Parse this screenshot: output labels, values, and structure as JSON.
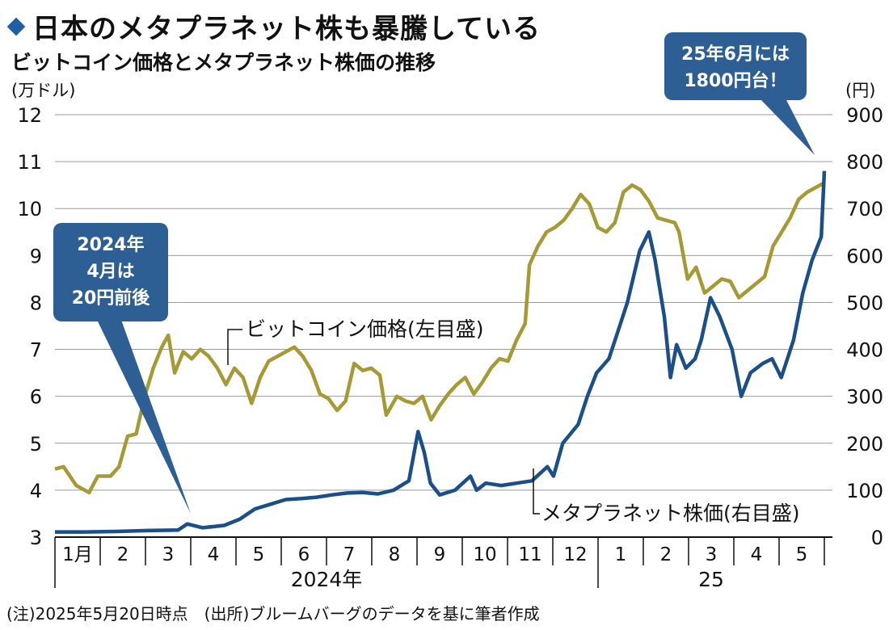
{
  "header": {
    "title": "日本のメタプラネット株も暴騰している",
    "subtitle": "ビットコイン価格とメタプラネット株価の推移",
    "unit_left": "(万ドル)",
    "unit_right": "(円)"
  },
  "footnote": "(注)2025年5月20日時点　(出所)ブルームバーグのデータを基に筆者作成",
  "chart_data": {
    "type": "line",
    "left_axis": {
      "unit": "万ドル",
      "range": [
        3,
        12
      ],
      "ticks": [
        3,
        4,
        5,
        6,
        7,
        8,
        9,
        10,
        11,
        12
      ]
    },
    "right_axis": {
      "unit": "円",
      "range": [
        0,
        900
      ],
      "ticks": [
        0,
        100,
        200,
        300,
        400,
        500,
        600,
        700,
        800,
        900
      ]
    },
    "x_axis": {
      "months": [
        "1月",
        "2",
        "3",
        "4",
        "5",
        "6",
        "7",
        "8",
        "9",
        "10",
        "11",
        "12",
        "1",
        "2",
        "3",
        "4",
        "5"
      ],
      "years": [
        "2024年",
        "25"
      ]
    },
    "grid": true,
    "series": [
      {
        "name": "ビットコイン価格(左目盛)",
        "axis": "left",
        "color": "#a69a35",
        "points": [
          [
            0.0,
            4.45
          ],
          [
            0.2,
            4.5
          ],
          [
            0.5,
            4.1
          ],
          [
            0.8,
            3.95
          ],
          [
            1.0,
            4.3
          ],
          [
            1.3,
            4.3
          ],
          [
            1.5,
            4.5
          ],
          [
            1.7,
            5.15
          ],
          [
            1.9,
            5.2
          ],
          [
            2.1,
            6.0
          ],
          [
            2.3,
            6.6
          ],
          [
            2.5,
            7.05
          ],
          [
            2.65,
            7.3
          ],
          [
            2.8,
            6.5
          ],
          [
            3.0,
            6.95
          ],
          [
            3.2,
            6.8
          ],
          [
            3.4,
            7.0
          ],
          [
            3.6,
            6.85
          ],
          [
            3.8,
            6.6
          ],
          [
            4.0,
            6.25
          ],
          [
            4.2,
            6.6
          ],
          [
            4.4,
            6.4
          ],
          [
            4.6,
            5.85
          ],
          [
            4.8,
            6.4
          ],
          [
            5.0,
            6.75
          ],
          [
            5.2,
            6.85
          ],
          [
            5.4,
            6.95
          ],
          [
            5.6,
            7.05
          ],
          [
            5.8,
            6.85
          ],
          [
            6.0,
            6.55
          ],
          [
            6.2,
            6.05
          ],
          [
            6.4,
            5.95
          ],
          [
            6.6,
            5.7
          ],
          [
            6.8,
            5.9
          ],
          [
            7.0,
            6.7
          ],
          [
            7.2,
            6.55
          ],
          [
            7.4,
            6.6
          ],
          [
            7.6,
            6.45
          ],
          [
            7.75,
            5.6
          ],
          [
            8.0,
            6.0
          ],
          [
            8.2,
            5.9
          ],
          [
            8.4,
            5.85
          ],
          [
            8.6,
            6.0
          ],
          [
            8.8,
            5.5
          ],
          [
            9.0,
            5.8
          ],
          [
            9.2,
            6.05
          ],
          [
            9.4,
            6.25
          ],
          [
            9.6,
            6.4
          ],
          [
            9.8,
            6.05
          ],
          [
            10.0,
            6.3
          ],
          [
            10.2,
            6.6
          ],
          [
            10.4,
            6.8
          ],
          [
            10.6,
            6.75
          ],
          [
            10.8,
            7.2
          ],
          [
            11.0,
            7.55
          ],
          [
            11.1,
            8.8
          ],
          [
            11.3,
            9.2
          ],
          [
            11.5,
            9.5
          ],
          [
            11.7,
            9.6
          ],
          [
            11.9,
            9.75
          ],
          [
            12.1,
            10.0
          ],
          [
            12.3,
            10.3
          ],
          [
            12.5,
            10.1
          ],
          [
            12.7,
            9.6
          ],
          [
            12.9,
            9.5
          ],
          [
            13.1,
            9.7
          ],
          [
            13.3,
            10.35
          ],
          [
            13.5,
            10.5
          ],
          [
            13.7,
            10.4
          ],
          [
            13.9,
            10.15
          ],
          [
            14.1,
            9.8
          ],
          [
            14.3,
            9.75
          ],
          [
            14.5,
            9.7
          ],
          [
            14.6,
            9.5
          ],
          [
            14.8,
            8.5
          ],
          [
            15.0,
            8.75
          ],
          [
            15.2,
            8.2
          ],
          [
            15.4,
            8.35
          ],
          [
            15.6,
            8.5
          ],
          [
            15.8,
            8.45
          ],
          [
            16.0,
            8.1
          ],
          [
            16.2,
            8.25
          ],
          [
            16.4,
            8.4
          ],
          [
            16.6,
            8.55
          ],
          [
            16.8,
            9.2
          ],
          [
            17.0,
            9.5
          ],
          [
            17.2,
            9.8
          ],
          [
            17.4,
            10.2
          ],
          [
            17.6,
            10.35
          ],
          [
            17.8,
            10.45
          ],
          [
            18.0,
            10.55
          ]
        ]
      },
      {
        "name": "メタプラネット株価(右目盛)",
        "axis": "right",
        "color": "#1b4f8a",
        "points": [
          [
            0.0,
            11
          ],
          [
            1.0,
            11
          ],
          [
            2.0,
            12
          ],
          [
            3.0,
            14
          ],
          [
            4.0,
            15
          ],
          [
            4.3,
            28
          ],
          [
            4.8,
            20
          ],
          [
            5.5,
            25
          ],
          [
            6.0,
            38
          ],
          [
            6.5,
            60
          ],
          [
            7.0,
            70
          ],
          [
            7.5,
            80
          ],
          [
            8.0,
            82
          ],
          [
            8.5,
            85
          ],
          [
            9.0,
            90
          ],
          [
            9.5,
            94
          ],
          [
            10.0,
            95
          ],
          [
            10.5,
            92
          ],
          [
            11.0,
            100
          ],
          [
            11.5,
            120
          ],
          [
            11.8,
            225
          ],
          [
            12.0,
            180
          ],
          [
            12.2,
            115
          ],
          [
            12.5,
            90
          ],
          [
            13.0,
            100
          ],
          [
            13.5,
            130
          ],
          [
            13.7,
            100
          ],
          [
            14.0,
            115
          ],
          [
            14.5,
            110
          ],
          [
            15.0,
            115
          ],
          [
            15.5,
            120
          ],
          [
            16.0,
            150
          ],
          [
            16.2,
            130
          ],
          [
            16.5,
            200
          ],
          [
            17.0,
            240
          ],
          [
            17.3,
            300
          ],
          [
            17.6,
            350
          ],
          [
            18.0,
            380
          ],
          [
            18.3,
            440
          ],
          [
            18.6,
            500
          ],
          [
            19.0,
            610
          ],
          [
            19.3,
            650
          ],
          [
            19.5,
            590
          ],
          [
            19.8,
            470
          ],
          [
            20.0,
            340
          ],
          [
            20.2,
            410
          ],
          [
            20.5,
            360
          ],
          [
            20.8,
            380
          ],
          [
            21.0,
            420
          ],
          [
            21.3,
            510
          ],
          [
            21.6,
            470
          ],
          [
            22.0,
            400
          ],
          [
            22.3,
            300
          ],
          [
            22.6,
            350
          ],
          [
            23.0,
            370
          ],
          [
            23.3,
            380
          ],
          [
            23.6,
            340
          ],
          [
            24.0,
            420
          ],
          [
            24.3,
            520
          ],
          [
            24.6,
            590
          ],
          [
            24.9,
            640
          ],
          [
            25.0,
            780
          ]
        ]
      }
    ],
    "annotations": [
      {
        "text": "ビットコイン価格(左目盛)"
      },
      {
        "text": "メタプラネット株価(右目盛)"
      },
      {
        "text": [
          "2024年",
          "4月は",
          "20円前後"
        ]
      },
      {
        "text": [
          "25年6月には",
          "1800円台！"
        ]
      }
    ],
    "callout_color": "#2e5f94"
  }
}
